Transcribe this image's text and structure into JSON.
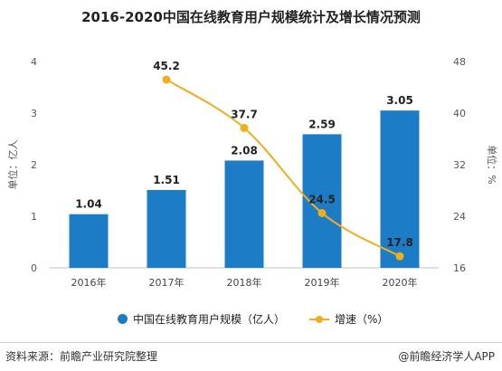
{
  "page": {
    "source": "资料来源：前瞻产业研究院整理",
    "credit": "@前瞻经济学人APP"
  },
  "chart_data": {
    "type": "bar",
    "title": "2016-2020中国在线教育用户规模统计及增长情况预测",
    "categories": [
      "2016年",
      "2017年",
      "2018年",
      "2019年",
      "2020年"
    ],
    "ylabel": "单位：亿人",
    "ylabel_right": "单位：%",
    "ylim": [
      0,
      4
    ],
    "yticks": [
      "0",
      "1",
      "2",
      "3",
      "4"
    ],
    "ylim_right": [
      16,
      48
    ],
    "yticks_right": [
      "16",
      "24",
      "32",
      "40",
      "48"
    ],
    "legend_position": "bottom",
    "series": [
      {
        "name": "中国在线教育用户规模（亿人）",
        "type": "bar",
        "axis": "left",
        "color": "#1c7cc6",
        "values": [
          1.04,
          1.51,
          2.08,
          2.59,
          3.05
        ],
        "labels": [
          "1.04",
          "1.51",
          "2.08",
          "2.59",
          "3.05"
        ]
      },
      {
        "name": "增速（%）",
        "type": "line",
        "axis": "right",
        "color": "#f0ad1e",
        "x": [
          "2017年",
          "2018年",
          "2019年",
          "2020年"
        ],
        "values": [
          45.2,
          37.7,
          24.5,
          17.8
        ],
        "labels": [
          "45.2",
          "37.7",
          "24.5",
          "17.8"
        ]
      }
    ]
  }
}
